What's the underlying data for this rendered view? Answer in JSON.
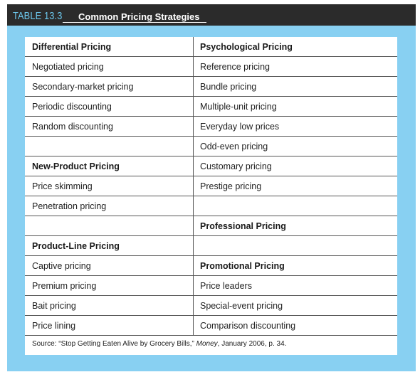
{
  "header": {
    "table_number": "TABLE 13.3",
    "title": "Common Pricing Strategies"
  },
  "rows": [
    {
      "left": "Differential Pricing",
      "left_bold": true,
      "right": "Psychological Pricing",
      "right_bold": true
    },
    {
      "left": "Negotiated pricing",
      "left_bold": false,
      "right": "Reference pricing",
      "right_bold": false
    },
    {
      "left": "Secondary-market pricing",
      "left_bold": false,
      "right": "Bundle pricing",
      "right_bold": false
    },
    {
      "left": "Periodic discounting",
      "left_bold": false,
      "right": "Multiple-unit pricing",
      "right_bold": false
    },
    {
      "left": "Random discounting",
      "left_bold": false,
      "right": "Everyday low prices",
      "right_bold": false
    },
    {
      "left": "",
      "left_bold": false,
      "right": "Odd-even pricing",
      "right_bold": false
    },
    {
      "left": "New-Product Pricing",
      "left_bold": true,
      "right": "Customary pricing",
      "right_bold": false
    },
    {
      "left": "Price skimming",
      "left_bold": false,
      "right": "Prestige pricing",
      "right_bold": false
    },
    {
      "left": "Penetration pricing",
      "left_bold": false,
      "right": "",
      "right_bold": false
    },
    {
      "left": "",
      "left_bold": false,
      "right": "Professional Pricing",
      "right_bold": true
    },
    {
      "left": "Product-Line Pricing",
      "left_bold": true,
      "right": "",
      "right_bold": false
    },
    {
      "left": "Captive pricing",
      "left_bold": false,
      "right": "Promotional Pricing",
      "right_bold": true
    },
    {
      "left": "Premium pricing",
      "left_bold": false,
      "right": "Price leaders",
      "right_bold": false
    },
    {
      "left": "Bait pricing",
      "left_bold": false,
      "right": "Special-event pricing",
      "right_bold": false
    },
    {
      "left": "Price lining",
      "left_bold": false,
      "right": "Comparison discounting",
      "right_bold": false
    }
  ],
  "source": {
    "prefix": "Source: “Stop Getting Eaten Alive by Grocery Bills,” ",
    "publication": "Money",
    "suffix": ", January 2006, p. 34."
  }
}
